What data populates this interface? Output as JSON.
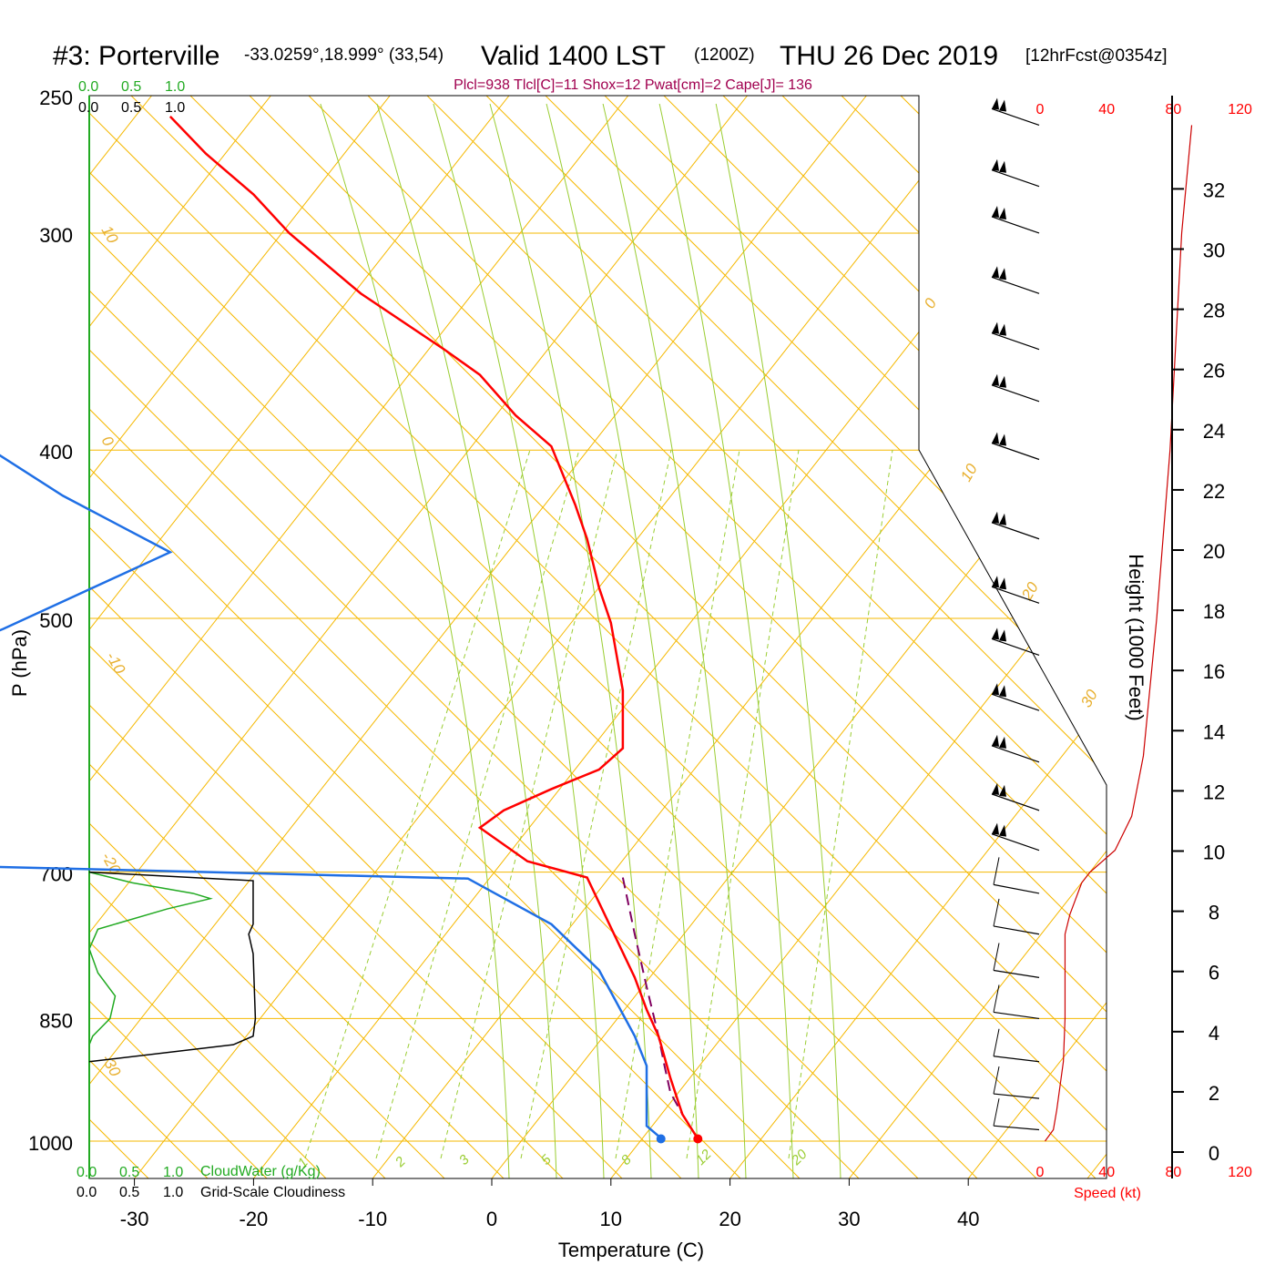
{
  "header": {
    "station": "#3: Porterville",
    "coords": "-33.0259°,18.999° (33,54)",
    "valid": "Valid 1400 LST",
    "utc": "(1200Z)",
    "date": "THU 26 Dec 2019",
    "forecast": "[12hrFcst@0354z]"
  },
  "params": "Plcl=938 Tlcl[C]=11 Shox=12 Pwat[cm]=2 Cape[J]= 136",
  "colors": {
    "temperature": "#ff0000",
    "dewpoint": "#1f6fe5",
    "parcel": "#800060",
    "isotherm": "#f5b800",
    "dry_adiabat": "#f5b800",
    "moist_adiabat": "#9acd32",
    "mixing_ratio": "#9acd32",
    "cloudwater": "#22aa22",
    "cloudiness": "#000000",
    "speed": "#ff0000"
  },
  "chart_data": {
    "type": "skew-t",
    "xlabel": "Temperature (C)",
    "ylabel": "P (hPa)",
    "y2label": "Height (1000 Feet)",
    "x_ticks": [
      "-30",
      "-20",
      "-10",
      "0",
      "10",
      "20",
      "30",
      "40"
    ],
    "x_values": [
      -30,
      -20,
      -10,
      0,
      10,
      20,
      30,
      40
    ],
    "pressure_ticks": [
      "250",
      "300",
      "400",
      "500",
      "700",
      "850",
      "1000"
    ],
    "pressure_values": [
      250,
      300,
      400,
      500,
      700,
      850,
      1000
    ],
    "height_ticks": [
      "0",
      "2",
      "4",
      "6",
      "8",
      "10",
      "12",
      "14",
      "16",
      "18",
      "20",
      "22",
      "24",
      "26",
      "28",
      "30",
      "32"
    ],
    "height_values": [
      0,
      2,
      4,
      6,
      8,
      10,
      12,
      14,
      16,
      18,
      20,
      22,
      24,
      26,
      28,
      30,
      32
    ],
    "series": [
      {
        "name": "temperature",
        "points": [
          [
            -27,
            257
          ],
          [
            -24,
            270
          ],
          [
            -20,
            285
          ],
          [
            -17,
            300
          ],
          [
            -11,
            325
          ],
          [
            -4,
            350
          ],
          [
            -1,
            362
          ],
          [
            2,
            382
          ],
          [
            5,
            398
          ],
          [
            7,
            430
          ],
          [
            8,
            450
          ],
          [
            9,
            480
          ],
          [
            10,
            503
          ],
          [
            11,
            550
          ],
          [
            11,
            594
          ],
          [
            9,
            611
          ],
          [
            5,
            627
          ],
          [
            1,
            645
          ],
          [
            -1,
            660
          ],
          [
            3,
            690
          ],
          [
            8,
            705
          ],
          [
            12,
            805
          ],
          [
            13,
            840
          ],
          [
            14,
            870
          ],
          [
            15,
            920
          ],
          [
            16,
            965
          ],
          [
            17.3,
            997
          ]
        ]
      },
      {
        "name": "dewpoint",
        "points": [
          [
            -49,
            264
          ],
          [
            -47,
            300
          ],
          [
            -46,
            320
          ],
          [
            -43,
            335
          ],
          [
            -43,
            365
          ],
          [
            -45,
            388
          ],
          [
            -36,
            425
          ],
          [
            -27,
            458
          ],
          [
            -41,
            507
          ],
          [
            -58,
            567
          ],
          [
            -58,
            574
          ],
          [
            -71,
            617
          ],
          [
            -86,
            634
          ],
          [
            -88,
            652
          ],
          [
            -84,
            672
          ],
          [
            -57,
            691
          ],
          [
            -2,
            706
          ],
          [
            5,
            750
          ],
          [
            9,
            797
          ],
          [
            12,
            870
          ],
          [
            13,
            905
          ],
          [
            13,
            980
          ],
          [
            14.2,
            996
          ]
        ]
      },
      {
        "name": "parcel",
        "points": [
          [
            11,
            705
          ],
          [
            12,
            760
          ],
          [
            13,
            815
          ],
          [
            14,
            870
          ],
          [
            14.5,
            905
          ],
          [
            15,
            938
          ],
          [
            16,
            965
          ],
          [
            17.3,
            997
          ]
        ]
      }
    ],
    "surface_temperature": 17.3,
    "surface_dewpoint": 14.2,
    "cloudwater_axis": {
      "label": "CloudWater (g/Kg)",
      "ticks": [
        "0.0",
        "0.5",
        "1.0"
      ]
    },
    "cloudiness_axis": {
      "label": "Grid-Scale Cloudiness",
      "ticks": [
        "0.0",
        "0.5",
        "1.0"
      ]
    },
    "cloudwater": [
      [
        700,
        0.0
      ],
      [
        710,
        0.25
      ],
      [
        720,
        0.6
      ],
      [
        725,
        0.7
      ],
      [
        735,
        0.45
      ],
      [
        755,
        0.05
      ],
      [
        775,
        0.0
      ],
      [
        800,
        0.05
      ],
      [
        825,
        0.15
      ],
      [
        850,
        0.12
      ],
      [
        870,
        0.02
      ],
      [
        880,
        0.0
      ]
    ],
    "cloudiness": [
      [
        700,
        0.0
      ],
      [
        708,
        0.74
      ],
      [
        750,
        0.74
      ],
      [
        760,
        0.72
      ],
      [
        780,
        0.74
      ],
      [
        850,
        0.75
      ],
      [
        870,
        0.74
      ],
      [
        880,
        0.65
      ],
      [
        900,
        0.0
      ]
    ],
    "wind_speed_axis": {
      "label": "Speed (kt)",
      "ticks": [
        "0",
        "40",
        "80",
        "120"
      ]
    },
    "wind_speed": [
      [
        1000,
        3
      ],
      [
        985,
        8
      ],
      [
        960,
        10
      ],
      [
        900,
        14
      ],
      [
        850,
        15
      ],
      [
        800,
        15
      ],
      [
        760,
        15
      ],
      [
        740,
        18
      ],
      [
        710,
        25
      ],
      [
        700,
        30
      ],
      [
        680,
        45
      ],
      [
        650,
        55
      ],
      [
        600,
        62
      ],
      [
        500,
        70
      ],
      [
        400,
        78
      ],
      [
        300,
        85
      ],
      [
        260,
        91
      ]
    ],
    "wind_barb_pressures": [
      260,
      282,
      300,
      325,
      350,
      375,
      405,
      450,
      490,
      525,
      565,
      605,
      645,
      680,
      720,
      760,
      805,
      850,
      900,
      945,
      985
    ],
    "isotherm_labels": [
      "10",
      "0",
      "-10",
      "-20",
      "-30",
      "0",
      "10",
      "20",
      "30"
    ],
    "mixing_ratio_labels": [
      "1",
      "2",
      "3",
      "5",
      "8",
      "12",
      "20"
    ]
  }
}
